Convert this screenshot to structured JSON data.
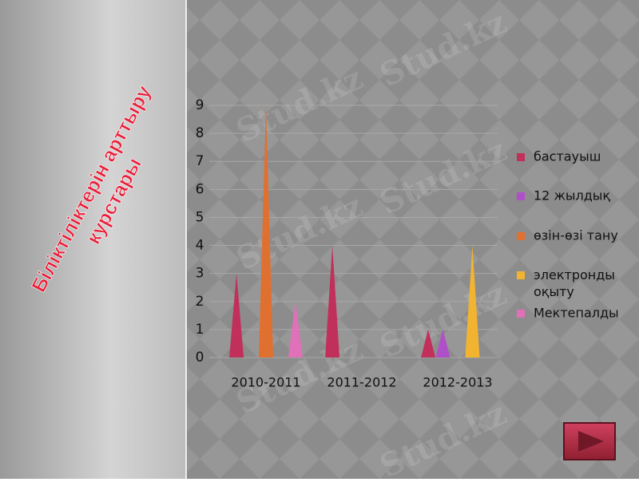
{
  "chart_data": {
    "type": "cone-bar",
    "title": [
      "Біліктіліктерін арттыру",
      "курстары"
    ],
    "watermark": "Stud.kz",
    "categories": [
      "2010-2011",
      "2011-2012",
      "2012-2013"
    ],
    "series": [
      {
        "name": "бастауыш",
        "color": "#c0305a",
        "values": [
          3,
          4,
          1
        ]
      },
      {
        "name": "12 жылдық",
        "color": "#b050c8",
        "values": [
          0,
          0,
          1
        ]
      },
      {
        "name": "өзін-өзі тану",
        "color": "#e07030",
        "values": [
          9,
          0,
          0
        ]
      },
      {
        "name": "электронды оқыту",
        "color": "#f2b430",
        "values": [
          0,
          0,
          4
        ]
      },
      {
        "name": "Мектепалды",
        "color": "#e070b8",
        "values": [
          2,
          0,
          0
        ]
      }
    ],
    "ylim": [
      0,
      9
    ],
    "yticks": [
      0,
      1,
      2,
      3,
      4,
      5,
      6,
      7,
      8,
      9
    ],
    "grid": true
  }
}
